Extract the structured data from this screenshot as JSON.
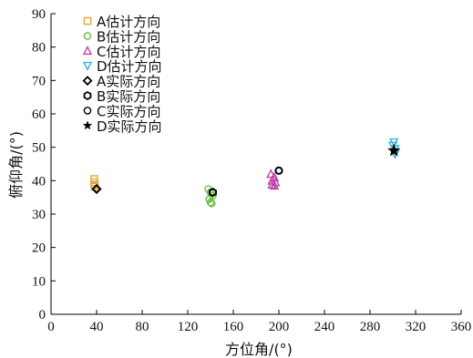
{
  "chart_data": {
    "type": "scatter",
    "title": "",
    "xlabel": "方位角/(°)",
    "ylabel": "俯仰角/(°)",
    "xlim": [
      0,
      360
    ],
    "ylim": [
      0,
      90
    ],
    "xticks": [
      0,
      40,
      80,
      120,
      160,
      200,
      240,
      280,
      320,
      360
    ],
    "yticks": [
      0,
      10,
      20,
      30,
      40,
      50,
      60,
      70,
      80,
      90
    ],
    "grid": false,
    "legend_position": "top-left",
    "series": [
      {
        "name": "A估计方向",
        "marker": "square",
        "color": "#E8A33A",
        "points": [
          [
            38,
            40.5
          ],
          [
            38,
            39.5
          ],
          [
            38,
            38.8
          ],
          [
            38.5,
            38.2
          ]
        ]
      },
      {
        "name": "B估计方向",
        "marker": "circle",
        "color": "#6DBE45",
        "points": [
          [
            138,
            37.5
          ],
          [
            140,
            36.5
          ],
          [
            142,
            35.5
          ],
          [
            139,
            34.5
          ],
          [
            140,
            33.5
          ],
          [
            141,
            33.2
          ]
        ]
      },
      {
        "name": "C估计方向",
        "marker": "triangle-up",
        "color": "#C23FAA",
        "points": [
          [
            193,
            42
          ],
          [
            196,
            41
          ],
          [
            194,
            40
          ],
          [
            197,
            39.5
          ],
          [
            194,
            38.8
          ],
          [
            196,
            38.5
          ]
        ]
      },
      {
        "name": "D估计方向",
        "marker": "triangle-down",
        "color": "#35B5D9",
        "points": [
          [
            301,
            51.5
          ],
          [
            300,
            50.5
          ],
          [
            302,
            49.5
          ],
          [
            301,
            48.5
          ],
          [
            302,
            48
          ]
        ]
      },
      {
        "name": "A实际方向",
        "marker": "diamond",
        "color": "#000000",
        "points": [
          [
            40,
            37.5
          ]
        ]
      },
      {
        "name": "B实际方向",
        "marker": "hexagon",
        "color": "#000000",
        "points": [
          [
            142,
            36.5
          ]
        ]
      },
      {
        "name": "C实际方向",
        "marker": "circle",
        "color": "#000000",
        "points": [
          [
            200,
            43
          ]
        ]
      },
      {
        "name": "D实际方向",
        "marker": "star",
        "color": "#000000",
        "points": [
          [
            301,
            49
          ]
        ]
      }
    ]
  }
}
